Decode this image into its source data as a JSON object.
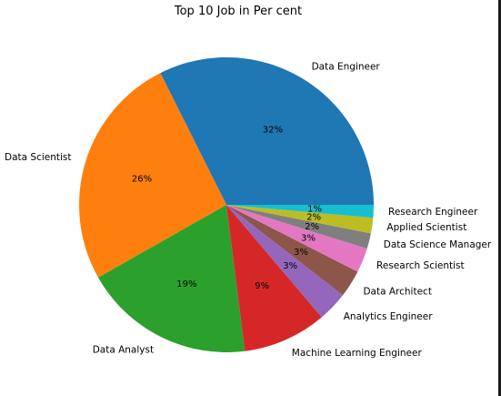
{
  "chart_data": {
    "type": "pie",
    "title": "Top 10 Job in Per cent",
    "categories": [
      "Data Engineer",
      "Data Scientist",
      "Data Analyst",
      "Machine Learning Engineer",
      "Analytics Engineer",
      "Data Architect",
      "Research Scientist",
      "Data Science Manager",
      "Applied Scientist",
      "Research Engineer"
    ],
    "values": [
      32.4,
      25.8,
      18.8,
      9.2,
      3.3,
      3.0,
      2.7,
      1.7,
      1.7,
      1.4
    ],
    "percent_labels": [
      "32%",
      "26%",
      "19%",
      "9%",
      "3%",
      "3%",
      "3%",
      "2%",
      "2%",
      "1%"
    ],
    "colors": [
      "#1f77b4",
      "#ff7f0e",
      "#2ca02c",
      "#d62728",
      "#9467bd",
      "#8c564b",
      "#e377c2",
      "#7f7f7f",
      "#bcbd22",
      "#17becf"
    ],
    "start_angle_deg": 0,
    "direction": "counterclockwise"
  }
}
